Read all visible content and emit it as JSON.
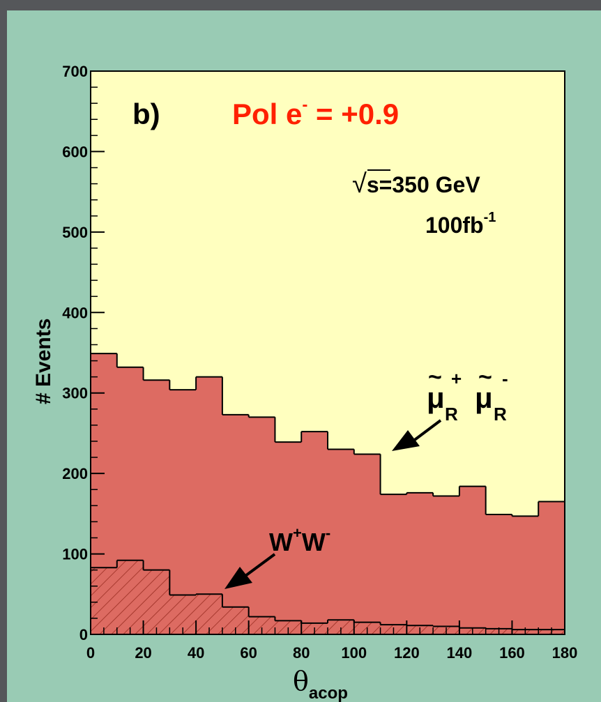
{
  "chart_data": {
    "type": "area",
    "title": "",
    "panel_label": "b)",
    "annotation_pol": {
      "text": "Pol e",
      "sup": "-",
      "rest": " = +0.9"
    },
    "annotation_energy": {
      "root": "√",
      "text": "s=350 GeV"
    },
    "annotation_lumi": {
      "text": "100fb",
      "sup": "-1"
    },
    "xlabel": {
      "symbol": "θ",
      "sub": "acop"
    },
    "ylabel": "# Events",
    "xlim": [
      0,
      180
    ],
    "ylim": [
      0,
      700
    ],
    "x_ticks": [
      0,
      20,
      40,
      60,
      80,
      100,
      120,
      140,
      160,
      180
    ],
    "y_ticks": [
      0,
      100,
      200,
      300,
      400,
      500,
      600,
      700
    ],
    "bin_edges": [
      0,
      10,
      20,
      30,
      40,
      50,
      60,
      70,
      80,
      90,
      100,
      110,
      120,
      130,
      140,
      150,
      160,
      170,
      180
    ],
    "series": [
      {
        "name": "smuon",
        "label": {
          "tilde": "~",
          "mu": "μ",
          "sup1": "+",
          "sub1": "R",
          "sup2": "-",
          "sub2": "R"
        },
        "values": [
          349,
          332,
          316,
          304,
          320,
          273,
          270,
          239,
          252,
          230,
          224,
          174,
          176,
          172,
          184,
          149,
          147,
          165
        ]
      },
      {
        "name": "WW",
        "label": {
          "text": "W",
          "sup1": "+",
          "mid": "W",
          "sup2": "-"
        },
        "values": [
          83,
          92,
          80,
          49,
          50,
          34,
          22,
          17,
          14,
          18,
          15,
          12,
          11,
          10,
          8,
          7,
          6,
          6
        ]
      }
    ],
    "colors": {
      "plot_bg": "#ffffbf",
      "signal_fill": "#dd6b62",
      "hatch": "#9a2d22",
      "pol_text": "#ff2000",
      "panel_bg": "#99cbb4"
    }
  }
}
